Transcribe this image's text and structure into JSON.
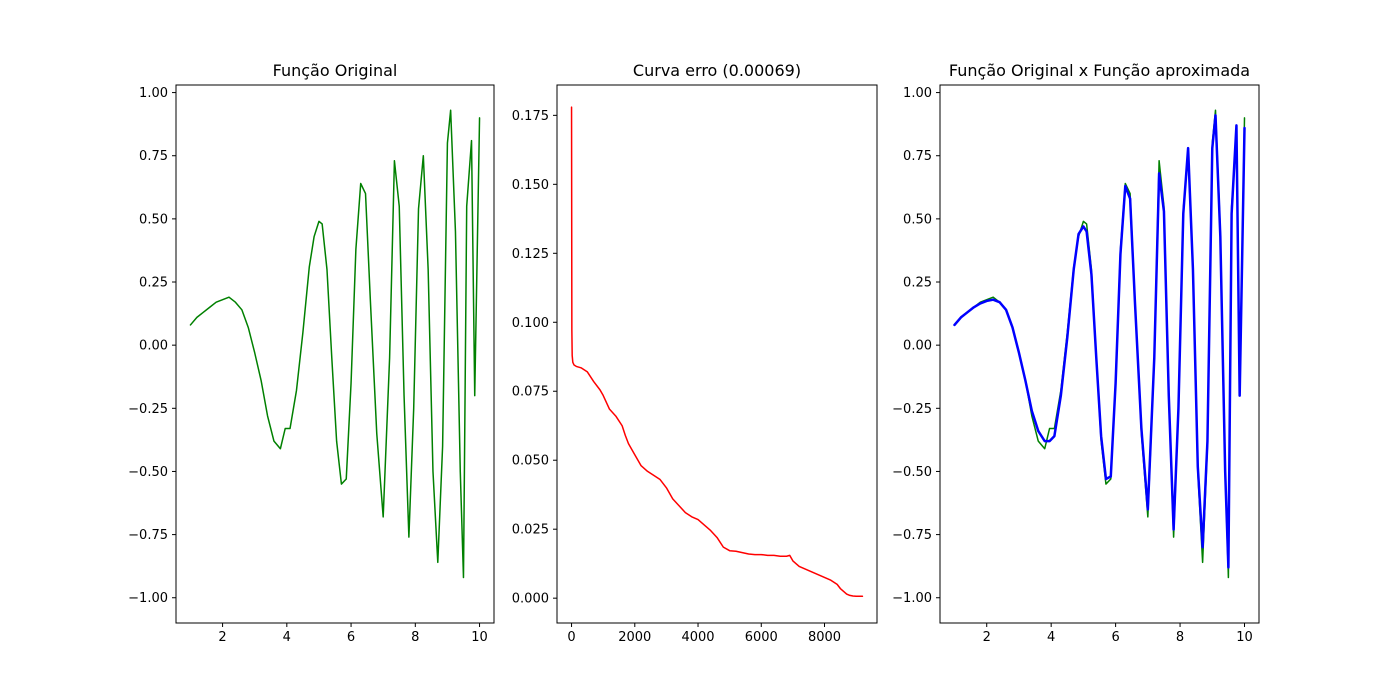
{
  "chart_data": [
    {
      "type": "line",
      "title": "Função Original",
      "xlabel": "",
      "ylabel": "",
      "xlim": [
        0.55,
        10.45
      ],
      "ylim": [
        -1.1,
        1.03
      ],
      "xticks": [
        2,
        4,
        6,
        8,
        10
      ],
      "xtick_labels": [
        "2",
        "4",
        "6",
        "8",
        "10"
      ],
      "yticks": [
        1.0,
        0.75,
        0.5,
        0.25,
        0.0,
        -0.25,
        -0.5,
        -0.75,
        -1.0
      ],
      "ytick_labels": [
        "1.00",
        "0.75",
        "0.50",
        "0.25",
        "0.00",
        "−0.25",
        "−0.50",
        "−0.75",
        "−1.00"
      ],
      "grid": false,
      "series": [
        {
          "color": "#008000",
          "line_width": 1.5,
          "x": [
            1.0,
            1.2,
            1.4,
            1.6,
            1.8,
            2.0,
            2.2,
            2.4,
            2.6,
            2.8,
            3.0,
            3.2,
            3.4,
            3.6,
            3.8,
            3.95,
            4.1,
            4.3,
            4.5,
            4.7,
            4.85,
            5.0,
            5.1,
            5.25,
            5.4,
            5.55,
            5.7,
            5.85,
            6.0,
            6.15,
            6.3,
            6.45,
            6.6,
            6.8,
            7.0,
            7.2,
            7.35,
            7.5,
            7.65,
            7.8,
            7.95,
            8.1,
            8.25,
            8.4,
            8.55,
            8.7,
            8.85,
            9.0,
            9.1,
            9.25,
            9.4,
            9.5,
            9.6,
            9.75,
            9.85,
            10.0
          ],
          "y": [
            0.08,
            0.11,
            0.13,
            0.15,
            0.17,
            0.18,
            0.19,
            0.17,
            0.14,
            0.07,
            -0.03,
            -0.14,
            -0.28,
            -0.38,
            -0.41,
            -0.33,
            -0.33,
            -0.18,
            0.05,
            0.31,
            0.43,
            0.49,
            0.48,
            0.3,
            -0.05,
            -0.38,
            -0.55,
            -0.53,
            -0.15,
            0.38,
            0.64,
            0.6,
            0.18,
            -0.35,
            -0.68,
            -0.05,
            0.73,
            0.55,
            -0.2,
            -0.76,
            -0.25,
            0.54,
            0.75,
            0.3,
            -0.5,
            -0.86,
            -0.4,
            0.8,
            0.93,
            0.45,
            -0.5,
            -0.92,
            0.55,
            0.81,
            -0.2,
            0.9
          ]
        }
      ]
    },
    {
      "type": "line",
      "title": "Curva erro (0.00069)",
      "xlabel": "",
      "ylabel": "",
      "xlim": [
        -460,
        9660
      ],
      "ylim": [
        -0.009,
        0.186
      ],
      "xticks": [
        0,
        2000,
        4000,
        6000,
        8000
      ],
      "xtick_labels": [
        "0",
        "2000",
        "4000",
        "6000",
        "8000"
      ],
      "yticks": [
        0.175,
        0.15,
        0.125,
        0.1,
        0.075,
        0.05,
        0.025,
        0.0
      ],
      "ytick_labels": [
        "0.175",
        "0.150",
        "0.125",
        "0.100",
        "0.075",
        "0.050",
        "0.025",
        "0.000"
      ],
      "grid": false,
      "series": [
        {
          "color": "#ff0000",
          "line_width": 1.5,
          "x": [
            0,
            10,
            20,
            40,
            80,
            150,
            300,
            500,
            700,
            900,
            1000,
            1200,
            1400,
            1600,
            1700,
            1800,
            2000,
            2200,
            2400,
            2600,
            2800,
            3000,
            3200,
            3400,
            3600,
            3800,
            4000,
            4200,
            4400,
            4600,
            4800,
            5000,
            5200,
            5400,
            5600,
            5800,
            6000,
            6200,
            6400,
            6600,
            6800,
            6900,
            7000,
            7200,
            7400,
            7600,
            7800,
            8000,
            8200,
            8400,
            8500,
            8600,
            8700,
            8800,
            8900,
            9000,
            9100,
            9200
          ],
          "y": [
            0.178,
            0.097,
            0.088,
            0.0855,
            0.0845,
            0.084,
            0.0835,
            0.082,
            0.0785,
            0.0755,
            0.0735,
            0.0685,
            0.066,
            0.0625,
            0.059,
            0.056,
            0.052,
            0.048,
            0.046,
            0.0445,
            0.043,
            0.04,
            0.036,
            0.0335,
            0.031,
            0.0295,
            0.0285,
            0.0265,
            0.0245,
            0.022,
            0.0185,
            0.0172,
            0.017,
            0.0165,
            0.016,
            0.0158,
            0.0158,
            0.0155,
            0.0155,
            0.0152,
            0.0152,
            0.0155,
            0.0135,
            0.0115,
            0.0105,
            0.0095,
            0.0085,
            0.0075,
            0.0065,
            0.005,
            0.0035,
            0.0025,
            0.0015,
            0.001,
            0.0008,
            0.0007,
            0.0007,
            0.0007
          ]
        }
      ]
    },
    {
      "type": "line",
      "title": "Função Original x Função aproximada",
      "xlabel": "",
      "ylabel": "",
      "xlim": [
        0.55,
        10.45
      ],
      "ylim": [
        -1.1,
        1.03
      ],
      "xticks": [
        2,
        4,
        6,
        8,
        10
      ],
      "xtick_labels": [
        "2",
        "4",
        "6",
        "8",
        "10"
      ],
      "yticks": [
        1.0,
        0.75,
        0.5,
        0.25,
        0.0,
        -0.25,
        -0.5,
        -0.75,
        -1.0
      ],
      "ytick_labels": [
        "1.00",
        "0.75",
        "0.50",
        "0.25",
        "0.00",
        "−0.25",
        "−0.50",
        "−0.75",
        "−1.00"
      ],
      "grid": false,
      "series": [
        {
          "color": "#008000",
          "line_width": 1.5,
          "x": [
            1.0,
            1.2,
            1.4,
            1.6,
            1.8,
            2.0,
            2.2,
            2.4,
            2.6,
            2.8,
            3.0,
            3.2,
            3.4,
            3.6,
            3.8,
            3.95,
            4.1,
            4.3,
            4.5,
            4.7,
            4.85,
            5.0,
            5.1,
            5.25,
            5.4,
            5.55,
            5.7,
            5.85,
            6.0,
            6.15,
            6.3,
            6.45,
            6.6,
            6.8,
            7.0,
            7.2,
            7.35,
            7.5,
            7.65,
            7.8,
            7.95,
            8.1,
            8.25,
            8.4,
            8.55,
            8.7,
            8.85,
            9.0,
            9.1,
            9.25,
            9.4,
            9.5,
            9.6,
            9.75,
            9.85,
            10.0
          ],
          "y": [
            0.08,
            0.11,
            0.13,
            0.15,
            0.17,
            0.18,
            0.19,
            0.17,
            0.14,
            0.07,
            -0.03,
            -0.14,
            -0.28,
            -0.38,
            -0.41,
            -0.33,
            -0.33,
            -0.18,
            0.05,
            0.31,
            0.43,
            0.49,
            0.48,
            0.3,
            -0.05,
            -0.38,
            -0.55,
            -0.53,
            -0.15,
            0.38,
            0.64,
            0.6,
            0.18,
            -0.35,
            -0.68,
            -0.05,
            0.73,
            0.55,
            -0.2,
            -0.76,
            -0.25,
            0.54,
            0.75,
            0.3,
            -0.5,
            -0.86,
            -0.4,
            0.8,
            0.93,
            0.45,
            -0.5,
            -0.92,
            0.55,
            0.81,
            -0.2,
            0.9
          ]
        },
        {
          "color": "#0000ff",
          "line_width": 2.5,
          "x": [
            1.0,
            1.2,
            1.4,
            1.6,
            1.8,
            2.0,
            2.2,
            2.4,
            2.6,
            2.8,
            3.0,
            3.2,
            3.4,
            3.6,
            3.8,
            3.95,
            4.1,
            4.3,
            4.5,
            4.7,
            4.85,
            5.0,
            5.1,
            5.25,
            5.4,
            5.55,
            5.7,
            5.85,
            6.0,
            6.15,
            6.3,
            6.45,
            6.6,
            6.8,
            7.0,
            7.2,
            7.35,
            7.5,
            7.65,
            7.8,
            7.95,
            8.1,
            8.25,
            8.4,
            8.55,
            8.7,
            8.85,
            9.0,
            9.1,
            9.25,
            9.4,
            9.5,
            9.6,
            9.75,
            9.85,
            10.0
          ],
          "y": [
            0.08,
            0.11,
            0.13,
            0.15,
            0.165,
            0.175,
            0.18,
            0.17,
            0.14,
            0.07,
            -0.03,
            -0.14,
            -0.26,
            -0.34,
            -0.38,
            -0.38,
            -0.36,
            -0.2,
            0.03,
            0.3,
            0.44,
            0.47,
            0.45,
            0.28,
            -0.05,
            -0.36,
            -0.53,
            -0.52,
            -0.15,
            0.36,
            0.63,
            0.58,
            0.17,
            -0.33,
            -0.65,
            -0.05,
            0.68,
            0.53,
            -0.2,
            -0.73,
            -0.25,
            0.52,
            0.78,
            0.3,
            -0.48,
            -0.8,
            -0.38,
            0.78,
            0.91,
            0.43,
            -0.5,
            -0.88,
            0.52,
            0.87,
            -0.2,
            0.86
          ]
        }
      ]
    }
  ]
}
